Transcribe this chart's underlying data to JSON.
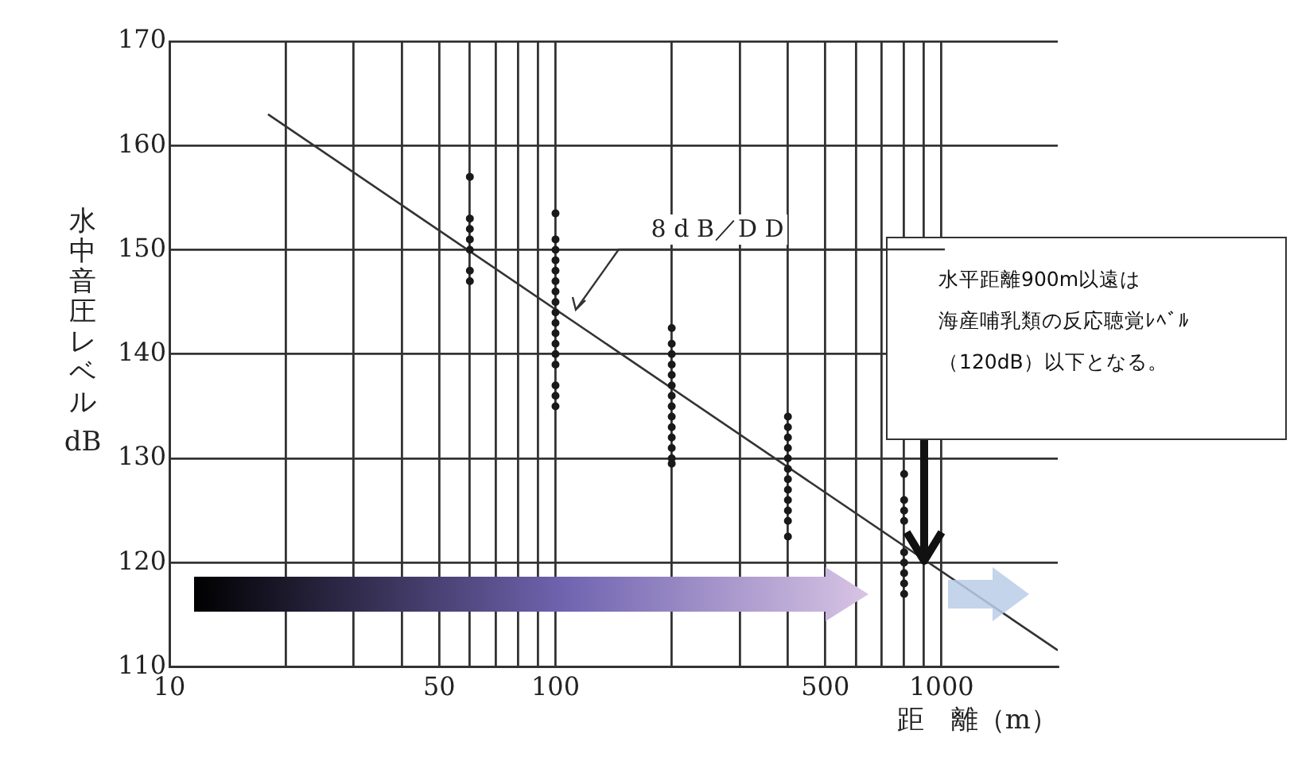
{
  "chart_data": {
    "type": "scatter",
    "xlabel": "距　離（m）",
    "ylabel": "水中音圧レベル dB",
    "log": "x",
    "grid": true,
    "xlim": [
      10,
      2000
    ],
    "ylim": [
      110,
      170
    ],
    "xticks": [
      10,
      {
        "value": 20,
        "label": null
      },
      {
        "value": 30,
        "label": null
      },
      {
        "value": 40,
        "label": null
      },
      50,
      {
        "value": 60,
        "label": null
      },
      {
        "value": 70,
        "label": null
      },
      {
        "value": 80,
        "label": null
      },
      {
        "value": 90,
        "label": null
      },
      100,
      {
        "value": 200,
        "label": null
      },
      {
        "value": 300,
        "label": null
      },
      {
        "value": 400,
        "label": null
      },
      500,
      {
        "value": 600,
        "label": null
      },
      {
        "value": 700,
        "label": null
      },
      {
        "value": 800,
        "label": null
      },
      {
        "value": 900,
        "label": null
      },
      1000
    ],
    "yticks": [
      110,
      120,
      130,
      140,
      150,
      160,
      170
    ],
    "series": [
      {
        "marker": "circle",
        "color": "#1a1a1a",
        "x": [
          60,
          60,
          60,
          60,
          60,
          60,
          60,
          100,
          100,
          100,
          100,
          100,
          100,
          100,
          100,
          100,
          100,
          100,
          100,
          100,
          100,
          100,
          100,
          100,
          200,
          200,
          200,
          200,
          200,
          200,
          200,
          200,
          200,
          200,
          200,
          200,
          200,
          200,
          400,
          400,
          400,
          400,
          400,
          400,
          400,
          400,
          400,
          400,
          400,
          400,
          800,
          800,
          800,
          800,
          800,
          800,
          800,
          800,
          800
        ],
        "values": [
          157,
          153,
          152,
          151,
          150,
          148,
          147,
          153.5,
          151,
          150,
          149,
          148,
          147,
          146,
          145,
          144,
          143,
          142,
          141,
          140,
          139,
          137,
          136,
          135,
          142.5,
          141,
          140,
          139,
          138,
          137,
          136,
          135,
          134,
          133,
          132,
          131,
          130,
          129.5,
          134,
          133,
          132,
          131,
          130,
          129,
          128,
          127,
          126,
          125,
          124,
          122.5,
          128.5,
          126,
          125,
          124,
          121,
          120,
          119,
          118,
          117
        ]
      },
      {
        "type": "line",
        "color": "#333333",
        "x": [
          18,
          2000
        ],
        "values": [
          163,
          111.6
        ]
      }
    ],
    "annotations": [
      {
        "text": "8 d B／D D",
        "x": 110,
        "y": 144
      },
      "水平距離900m以遠は",
      "海産哺乳類の反応聴覚ﾚﾍﾞﾙ",
      "（120dB）以下となる。"
    ]
  }
}
